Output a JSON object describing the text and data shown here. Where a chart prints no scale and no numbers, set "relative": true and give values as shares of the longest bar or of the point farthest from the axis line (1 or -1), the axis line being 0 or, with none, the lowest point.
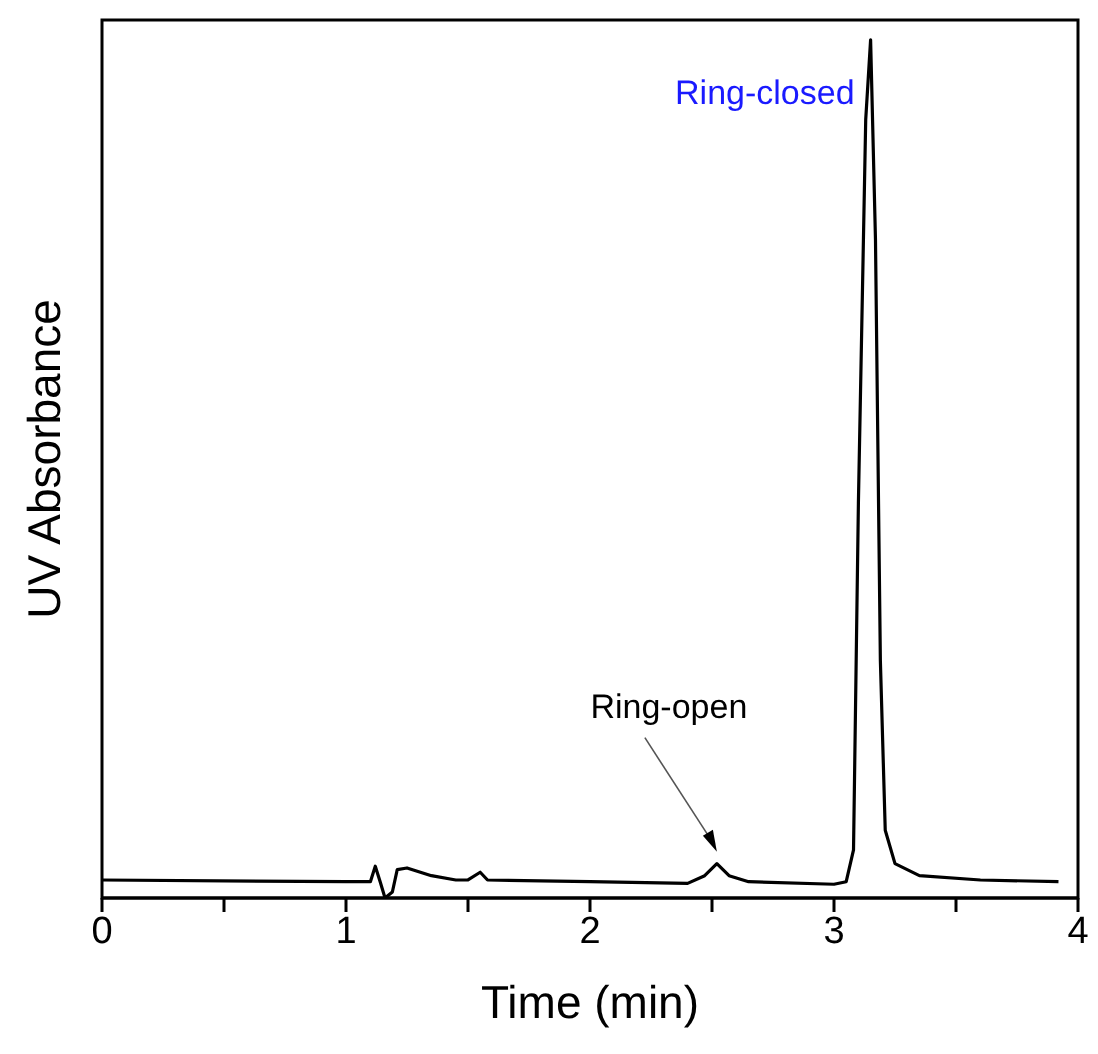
{
  "chart_data": {
    "type": "line",
    "relative": true,
    "xlabel": "Time (min)",
    "ylabel": "UV Absorbance",
    "xlim": [
      0,
      4
    ],
    "xticks": [
      0,
      {
        "value": 0.5,
        "label": null
      },
      1,
      {
        "value": 1.5,
        "label": null
      },
      2,
      {
        "value": 2.5,
        "label": null
      },
      3,
      {
        "value": 3.5,
        "label": null
      },
      4
    ],
    "annotations": [
      "Ring-closed",
      "Ring-open"
    ],
    "grid": false,
    "legend": false,
    "marker": "none",
    "line_style": "solid",
    "series": [
      {
        "color": "#000000",
        "x": [
          0,
          1.0,
          1.1,
          1.12,
          1.14,
          1.16,
          1.19,
          1.21,
          1.25,
          1.35,
          1.45,
          1.5,
          1.55,
          1.58,
          2.0,
          2.4,
          2.47,
          2.52,
          2.57,
          2.65,
          3.0,
          3.05,
          3.08,
          3.1,
          3.13,
          3.15,
          3.17,
          3.19,
          3.21,
          3.25,
          3.35,
          3.6,
          3.92
        ],
        "values": [
          0.021,
          0.019,
          0.019,
          0.037,
          0.019,
          0.0,
          0.007,
          0.033,
          0.035,
          0.026,
          0.021,
          0.021,
          0.03,
          0.021,
          0.019,
          0.017,
          0.026,
          0.04,
          0.026,
          0.019,
          0.016,
          0.019,
          0.056,
          0.46,
          0.907,
          1,
          0.767,
          0.277,
          0.079,
          0.04,
          0.026,
          0.021,
          0.019
        ]
      }
    ]
  }
}
